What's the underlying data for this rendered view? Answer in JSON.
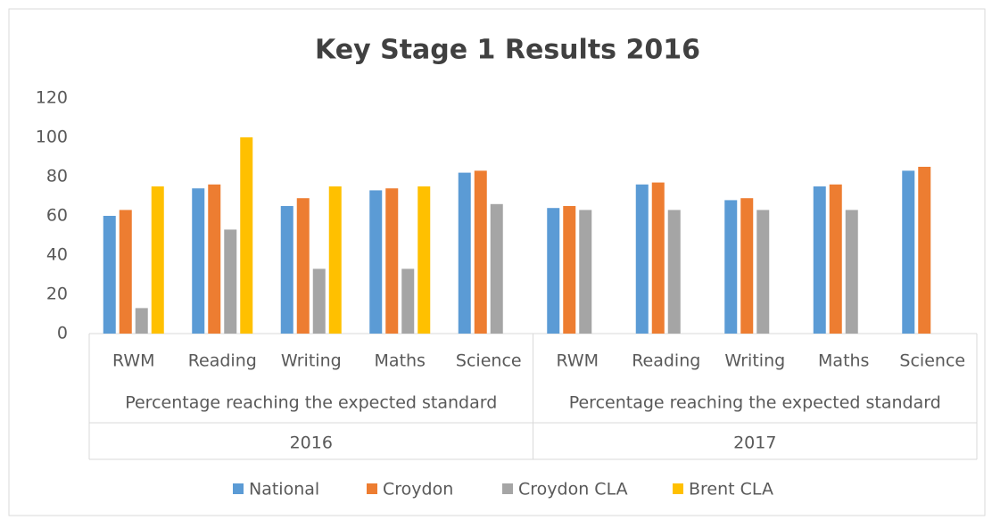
{
  "chart_data": {
    "type": "bar",
    "title": "Key Stage 1 Results 2016",
    "categories": [
      "RWM",
      "Reading",
      "Writing",
      "Maths",
      "Science",
      "RWM",
      "Reading",
      "Writing",
      "Maths",
      "Science"
    ],
    "groups": [
      {
        "label": "2016",
        "sublabel": "Percentage reaching the expected standard"
      },
      {
        "label": "2017",
        "sublabel": "Percentage reaching the expected standard"
      }
    ],
    "series": [
      {
        "name": "National",
        "color": "#5b9bd5",
        "values": [
          60,
          74,
          65,
          73,
          82,
          64,
          76,
          68,
          75,
          83
        ]
      },
      {
        "name": "Croydon",
        "color": "#ed7d31",
        "values": [
          63,
          76,
          69,
          74,
          83,
          65,
          77,
          69,
          76,
          85
        ]
      },
      {
        "name": "Croydon CLA",
        "color": "#a5a5a5",
        "values": [
          13,
          53,
          33,
          33,
          66,
          63,
          63,
          63,
          63,
          null
        ]
      },
      {
        "name": "Brent CLA",
        "color": "#ffc000",
        "values": [
          75,
          100,
          75,
          75,
          null,
          null,
          null,
          null,
          null,
          null
        ]
      }
    ],
    "ylim": [
      0,
      120
    ],
    "yticks": [
      0,
      20,
      40,
      60,
      80,
      100,
      120
    ],
    "grid": false,
    "legend": "bottom"
  }
}
